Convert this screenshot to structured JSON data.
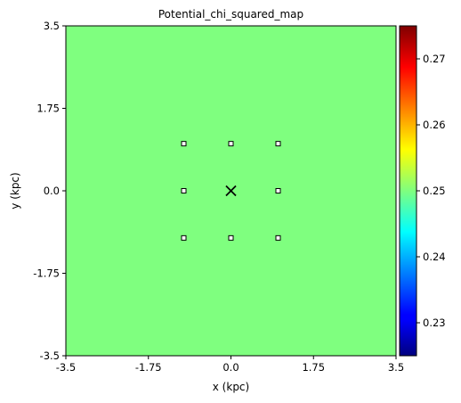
{
  "chart_data": {
    "type": "heatmap",
    "title": "Potential_chi_squared_map",
    "xlabel": "x (kpc)",
    "ylabel": "y (kpc)",
    "xlim": [
      -3.5,
      3.5
    ],
    "ylim": [
      -3.5,
      3.5
    ],
    "x_ticks": [
      "-3.5",
      "-1.75",
      "0.0",
      "1.75",
      "3.5"
    ],
    "y_ticks": [
      "-3.5",
      "-1.75",
      "0.0",
      "1.75",
      "3.5"
    ],
    "field_value": 0.25,
    "field_color": "#7fff7f",
    "colorbar": {
      "min": 0.225,
      "max": 0.275,
      "ticks": [
        "0.23",
        "0.24",
        "0.25",
        "0.26",
        "0.27"
      ],
      "colormap": "jet"
    },
    "grid_points": [
      {
        "x": -1,
        "y": 1
      },
      {
        "x": 0,
        "y": 1
      },
      {
        "x": 1,
        "y": 1
      },
      {
        "x": -1,
        "y": 0
      },
      {
        "x": 1,
        "y": 0
      },
      {
        "x": -1,
        "y": -1
      },
      {
        "x": 0,
        "y": -1
      },
      {
        "x": 1,
        "y": -1
      }
    ],
    "best_fit_marker": {
      "x": 0,
      "y": 0,
      "symbol": "x"
    },
    "grid": false
  }
}
